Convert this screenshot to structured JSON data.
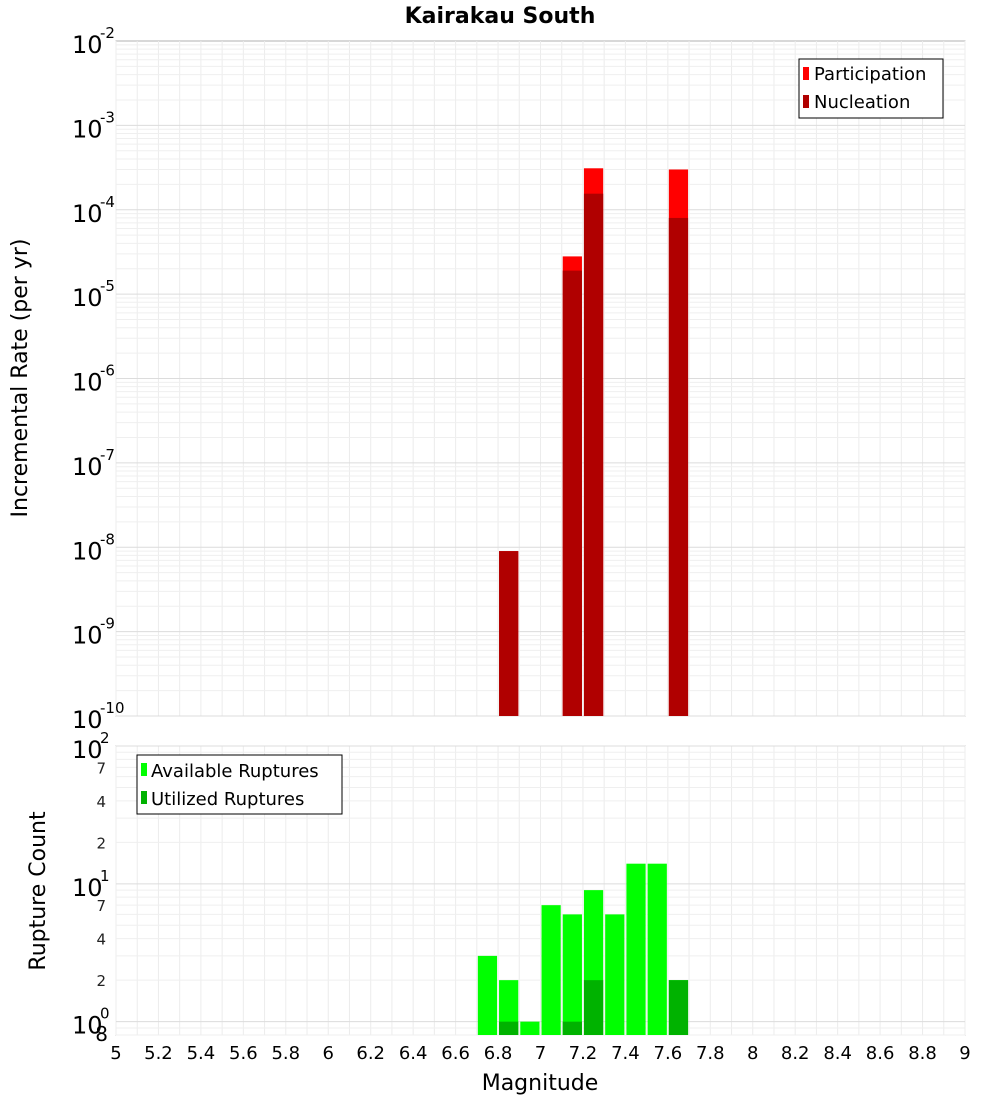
{
  "chart_data": [
    {
      "type": "bar",
      "title": "Kairakau South",
      "xlabel": "",
      "ylabel": "Incremental Rate (per yr)",
      "yscale": "log",
      "ylim": [
        1e-10,
        0.01
      ],
      "xlim": [
        5,
        9
      ],
      "grid": true,
      "legend_position": "top-right",
      "y_ticks": [
        {
          "base": "10",
          "exp": "-10",
          "value": 1e-10
        },
        {
          "base": "10",
          "exp": "-9",
          "value": 1e-09
        },
        {
          "base": "10",
          "exp": "-8",
          "value": 1e-08
        },
        {
          "base": "10",
          "exp": "-7",
          "value": 1e-07
        },
        {
          "base": "10",
          "exp": "-6",
          "value": 1e-06
        },
        {
          "base": "10",
          "exp": "-5",
          "value": 1e-05
        },
        {
          "base": "10",
          "exp": "-4",
          "value": 0.0001
        },
        {
          "base": "10",
          "exp": "-3",
          "value": 0.001
        },
        {
          "base": "10",
          "exp": "-2",
          "value": 0.01
        }
      ],
      "series": [
        {
          "name": "Participation",
          "color": "#ff0000",
          "x": [
            6.85,
            7.15,
            7.25,
            7.65
          ],
          "values": [
            9e-09,
            2.8e-05,
            0.00031,
            0.0003
          ]
        },
        {
          "name": "Nucleation",
          "color": "#b00000",
          "x": [
            6.85,
            7.15,
            7.25,
            7.65
          ],
          "values": [
            9e-09,
            1.9e-05,
            0.000155,
            8e-05
          ]
        }
      ]
    },
    {
      "type": "bar",
      "title": "",
      "xlabel": "Magnitude",
      "ylabel": "Rupture Count",
      "yscale": "log",
      "ylim": [
        0.8,
        100
      ],
      "xlim": [
        5,
        9
      ],
      "grid": true,
      "legend_position": "top-left",
      "y_major_ticks": [
        {
          "base": "10",
          "exp": "0",
          "value": 1
        },
        {
          "base": "10",
          "exp": "1",
          "value": 10
        },
        {
          "base": "10",
          "exp": "2",
          "value": 100
        }
      ],
      "y_minor_ticks": [
        {
          "label": "8",
          "value": 0.8
        },
        {
          "label": "2",
          "value": 2
        },
        {
          "label": "4",
          "value": 4
        },
        {
          "label": "7",
          "value": 7
        },
        {
          "label": "2",
          "value": 20
        },
        {
          "label": "4",
          "value": 40
        },
        {
          "label": "7",
          "value": 70
        }
      ],
      "x_ticks": [
        "5",
        "5.2",
        "5.4",
        "5.6",
        "5.8",
        "6",
        "6.2",
        "6.4",
        "6.6",
        "6.8",
        "7",
        "7.2",
        "7.4",
        "7.6",
        "7.8",
        "8",
        "8.2",
        "8.4",
        "8.6",
        "8.8",
        "9"
      ],
      "series": [
        {
          "name": "Available Ruptures",
          "color": "#00ff00",
          "x": [
            6.75,
            6.85,
            6.95,
            7.05,
            7.15,
            7.25,
            7.35,
            7.45,
            7.55,
            7.65
          ],
          "values": [
            3,
            2,
            1,
            7,
            6,
            9,
            6,
            14,
            14,
            2
          ]
        },
        {
          "name": "Utilized Ruptures",
          "color": "#00b200",
          "x": [
            6.85,
            7.15,
            7.25,
            7.65
          ],
          "values": [
            1,
            1,
            2,
            2
          ]
        }
      ]
    }
  ]
}
